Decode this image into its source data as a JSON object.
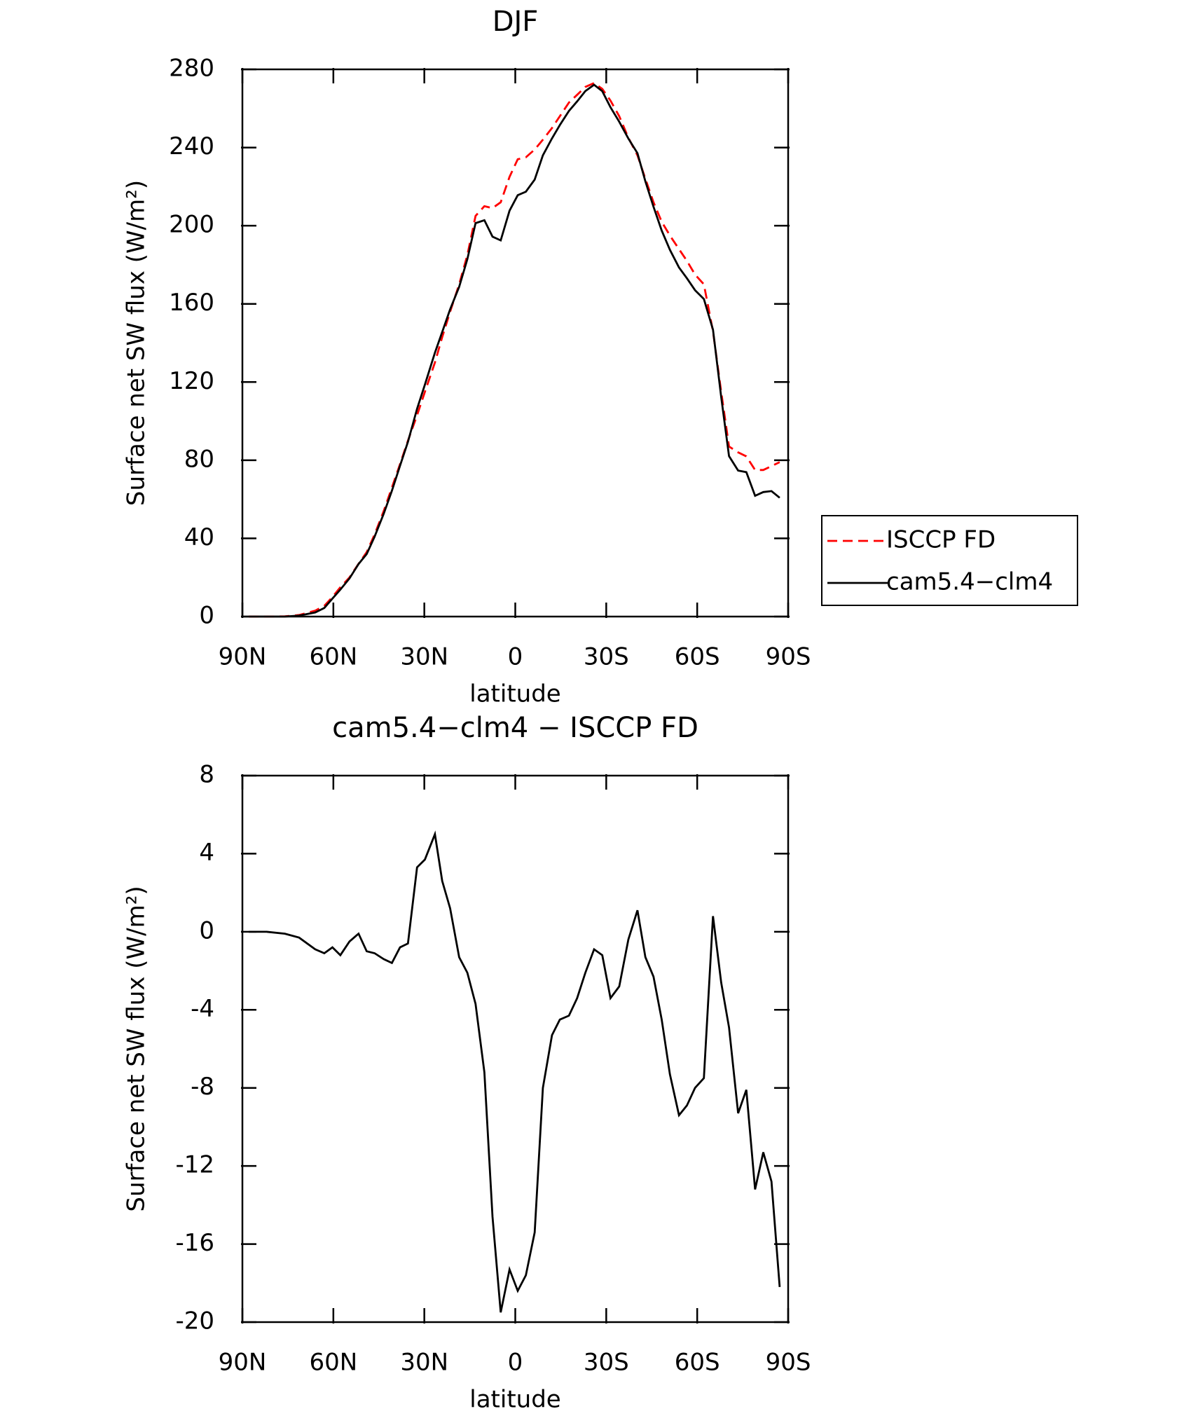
{
  "chart_data": [
    {
      "type": "line",
      "title": "DJF",
      "xlabel": "latitude",
      "ylabel": "Surface net SW flux (W/m²)",
      "x": [
        87.9,
        82,
        76,
        71.3,
        66,
        63,
        60.3,
        57.7,
        54.7,
        51.7,
        49,
        46.4,
        43.4,
        40.7,
        38,
        35.4,
        32.4,
        29.8,
        26.5,
        24.1,
        21.5,
        18.5,
        15.8,
        13.1,
        10.2,
        7.5,
        4.8,
        1.9,
        -0.8,
        -3.5,
        -6.4,
        -9.1,
        -12.1,
        -14.7,
        -17.7,
        -20.4,
        -23.1,
        -26,
        -28.7,
        -31.4,
        -34.3,
        -37.3,
        -40.3,
        -42.9,
        -45.6,
        -48.3,
        -51,
        -54,
        -56.6,
        -59.3,
        -62.2,
        -65.2,
        -67.9,
        -70.5,
        -73.5,
        -76.2,
        -79.1,
        -81.8,
        -84.5,
        -87.2
      ],
      "series": [
        {
          "name": "ISCCP FD",
          "color": "#ff0000",
          "dashed": true,
          "values": [
            0,
            0,
            0.1,
            0.8,
            3,
            5.5,
            10,
            15,
            20,
            27,
            33,
            42,
            54,
            66,
            78,
            90,
            103,
            115,
            130,
            143,
            156,
            170,
            185,
            205,
            210,
            209,
            212,
            225,
            234,
            235,
            239,
            244,
            250,
            256,
            263,
            267,
            271,
            273,
            270,
            264,
            256,
            245,
            236,
            224,
            212,
            202,
            195,
            188,
            182,
            175,
            170,
            146,
            115,
            87,
            84,
            82,
            75,
            75,
            77,
            79
          ]
        },
        {
          "name": "cam5.4−clm4",
          "color": "#000000",
          "dashed": false,
          "values": [
            0,
            0,
            0,
            0.5,
            2.1,
            4.4,
            9.2,
            13.8,
            19.5,
            26.9,
            32,
            40.9,
            52.6,
            64.4,
            77.2,
            89.4,
            106.3,
            118.7,
            135,
            145.6,
            157.2,
            168.7,
            182.9,
            201.3,
            202.8,
            194.4,
            192.5,
            207.7,
            215.6,
            217.4,
            223.6,
            236,
            244.7,
            251.5,
            258.7,
            263.6,
            268.9,
            272.1,
            268.8,
            260.6,
            253.2,
            244.6,
            237.1,
            222.7,
            209.7,
            197.5,
            187.7,
            178.6,
            173.1,
            167,
            162.5,
            146.8,
            112.4,
            82.1,
            74.7,
            73.9,
            61.8,
            63.7,
            64.2,
            60.8
          ]
        }
      ],
      "xlim": [
        90,
        -90
      ],
      "xticks": [
        {
          "value": 90,
          "label": "90N"
        },
        {
          "value": 60,
          "label": "60N"
        },
        {
          "value": 30,
          "label": "30N"
        },
        0,
        {
          "value": -30,
          "label": "30S"
        },
        {
          "value": -60,
          "label": "60S"
        },
        {
          "value": -90,
          "label": "90S"
        }
      ],
      "ylim": [
        0,
        280
      ],
      "yticks": [
        0,
        40,
        80,
        120,
        160,
        200,
        240,
        280
      ],
      "legend": "right"
    },
    {
      "type": "line",
      "title": "cam5.4−clm4 − ISCCP FD",
      "xlabel": "latitude",
      "ylabel": "Surface net SW flux (W/m²)",
      "x": [
        87.9,
        82,
        76,
        71.3,
        66,
        63,
        60.3,
        57.7,
        54.7,
        51.7,
        49,
        46.4,
        43.4,
        40.7,
        38,
        35.4,
        32.4,
        29.8,
        26.5,
        24.1,
        21.5,
        18.5,
        15.8,
        13.1,
        10.2,
        7.5,
        4.8,
        1.9,
        -0.8,
        -3.5,
        -6.4,
        -9.1,
        -12.1,
        -14.7,
        -17.7,
        -20.4,
        -23.1,
        -26,
        -28.7,
        -31.4,
        -34.3,
        -37.3,
        -40.3,
        -42.9,
        -45.6,
        -48.3,
        -51,
        -54,
        -56.6,
        -59.3,
        -62.2,
        -65.2,
        -67.9,
        -70.5,
        -73.5,
        -76.2,
        -79.1,
        -81.8,
        -84.5,
        -87.2
      ],
      "values": [
        0,
        0,
        -0.1,
        -0.3,
        -0.9,
        -1.1,
        -0.8,
        -1.2,
        -0.5,
        -0.1,
        -1.0,
        -1.1,
        -1.4,
        -1.6,
        -0.8,
        -0.6,
        3.3,
        3.7,
        5.0,
        2.6,
        1.2,
        -1.3,
        -2.1,
        -3.7,
        -7.2,
        -14.6,
        -19.5,
        -17.3,
        -18.4,
        -17.6,
        -15.4,
        -8.0,
        -5.3,
        -4.5,
        -4.3,
        -3.4,
        -2.1,
        -0.9,
        -1.2,
        -3.4,
        -2.8,
        -0.4,
        1.1,
        -1.3,
        -2.3,
        -4.5,
        -7.3,
        -9.4,
        -8.9,
        -8.0,
        -7.5,
        0.8,
        -2.6,
        -4.9,
        -9.3,
        -8.1,
        -13.2,
        -11.3,
        -12.8,
        -18.2
      ],
      "color": "#000000",
      "xlim": [
        90,
        -90
      ],
      "xticks": [
        {
          "value": 90,
          "label": "90N"
        },
        {
          "value": 60,
          "label": "60N"
        },
        {
          "value": 30,
          "label": "30N"
        },
        0,
        {
          "value": -30,
          "label": "30S"
        },
        {
          "value": -60,
          "label": "60S"
        },
        {
          "value": -90,
          "label": "90S"
        }
      ],
      "ylim": [
        -20,
        8
      ],
      "yticks": [
        -20,
        -16,
        -12,
        -8,
        -4,
        0,
        4,
        8
      ]
    }
  ]
}
